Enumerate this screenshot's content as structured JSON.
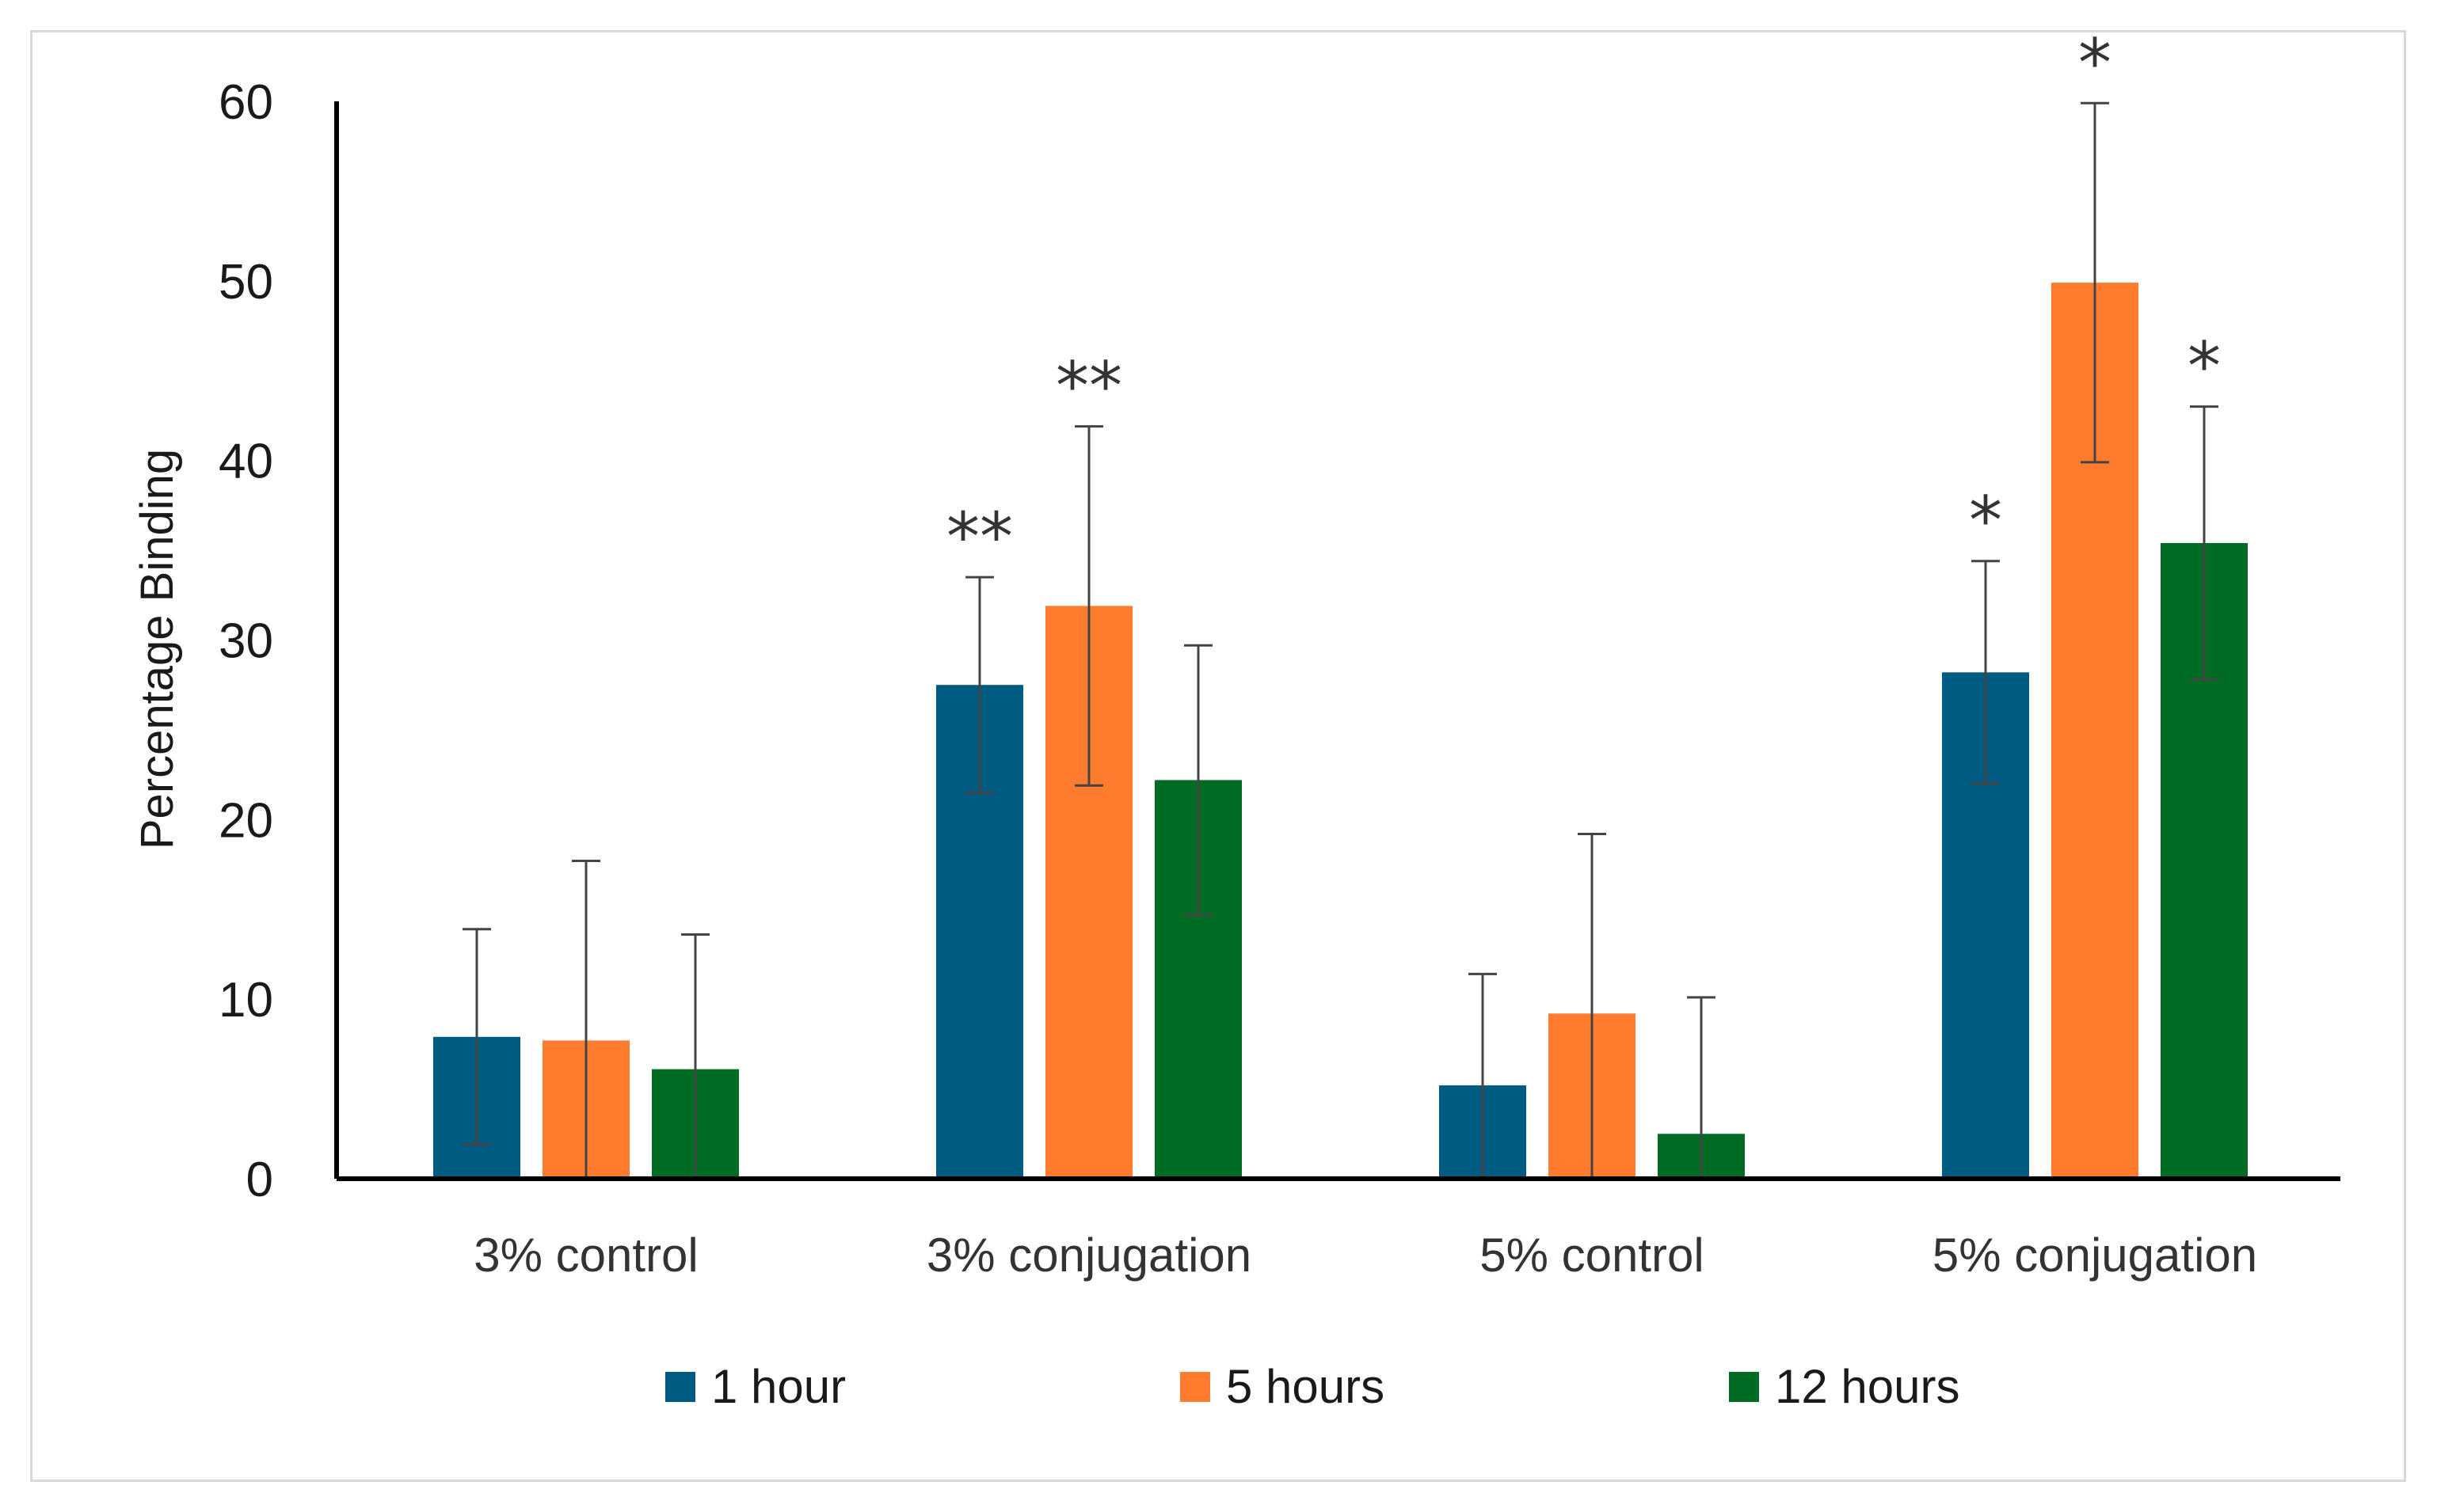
{
  "chart_data": {
    "type": "bar",
    "title": "",
    "xlabel": "",
    "ylabel": "Percentage Binding",
    "ylim": [
      0,
      60
    ],
    "yticks": [
      0,
      10,
      20,
      30,
      40,
      50,
      60
    ],
    "grid": false,
    "legend_position": "bottom",
    "categories": [
      "3% control",
      "3% conjugation",
      "5% control",
      "5% conjugation"
    ],
    "series": [
      {
        "name": "1 hour",
        "color": "#005b82",
        "values": [
          7.9,
          27.5,
          5.2,
          28.2
        ],
        "errors": [
          6.0,
          6.0,
          6.2,
          6.2
        ],
        "significance": [
          "",
          "**",
          "",
          "*"
        ]
      },
      {
        "name": "5 hours",
        "color": "#ff7b2e",
        "values": [
          7.7,
          31.9,
          9.2,
          49.9
        ],
        "errors": [
          10.0,
          10.0,
          10.0,
          10.0
        ],
        "significance": [
          "",
          "**",
          "",
          "*"
        ]
      },
      {
        "name": "12 hours",
        "color": "#006b22",
        "values": [
          6.1,
          22.2,
          2.5,
          35.4
        ],
        "errors": [
          7.5,
          7.5,
          7.6,
          7.6
        ],
        "significance": [
          "",
          "",
          "",
          "*"
        ]
      }
    ]
  }
}
